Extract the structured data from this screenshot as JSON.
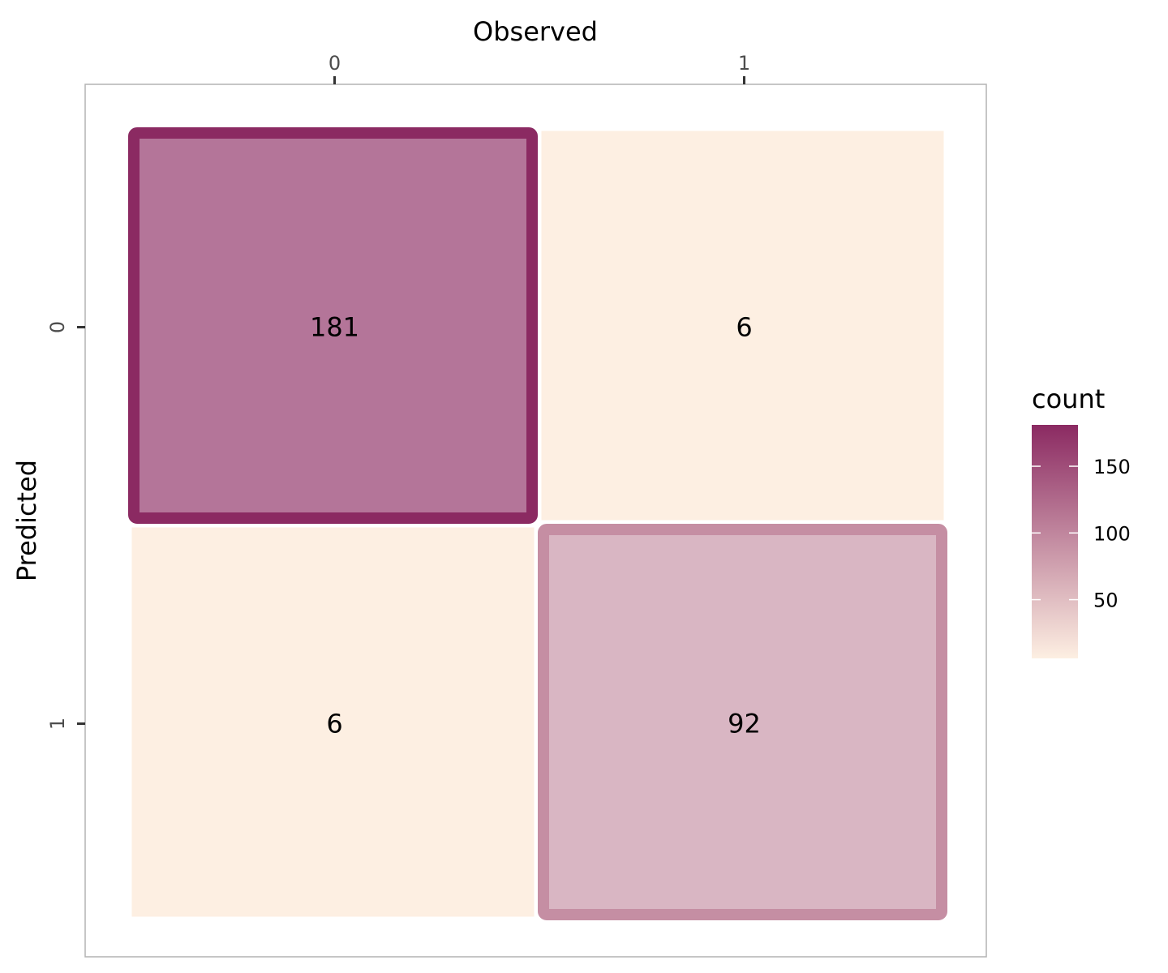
{
  "chart_data": {
    "type": "heatmap",
    "xlabel": "Observed",
    "ylabel": "Predicted",
    "x_categories": [
      "0",
      "1"
    ],
    "y_categories": [
      "0",
      "1"
    ],
    "cells": [
      {
        "observed": "0",
        "predicted": "0",
        "count": 181,
        "label": "181",
        "highlight": true
      },
      {
        "observed": "1",
        "predicted": "0",
        "count": 6,
        "label": "6",
        "highlight": false
      },
      {
        "observed": "0",
        "predicted": "1",
        "count": 6,
        "label": "6",
        "highlight": false
      },
      {
        "observed": "1",
        "predicted": "1",
        "count": 92,
        "label": "92",
        "highlight": true
      }
    ],
    "legend": {
      "title": "count",
      "position": "right",
      "range": [
        6,
        181
      ],
      "ticks": [
        {
          "value": 50,
          "label": "50"
        },
        {
          "value": 100,
          "label": "100"
        },
        {
          "value": 150,
          "label": "150"
        }
      ],
      "color_low": "#fdefe2",
      "color_high": "#8b2a62"
    },
    "x_axis_position": "top",
    "panel_border": true,
    "grid": false
  }
}
